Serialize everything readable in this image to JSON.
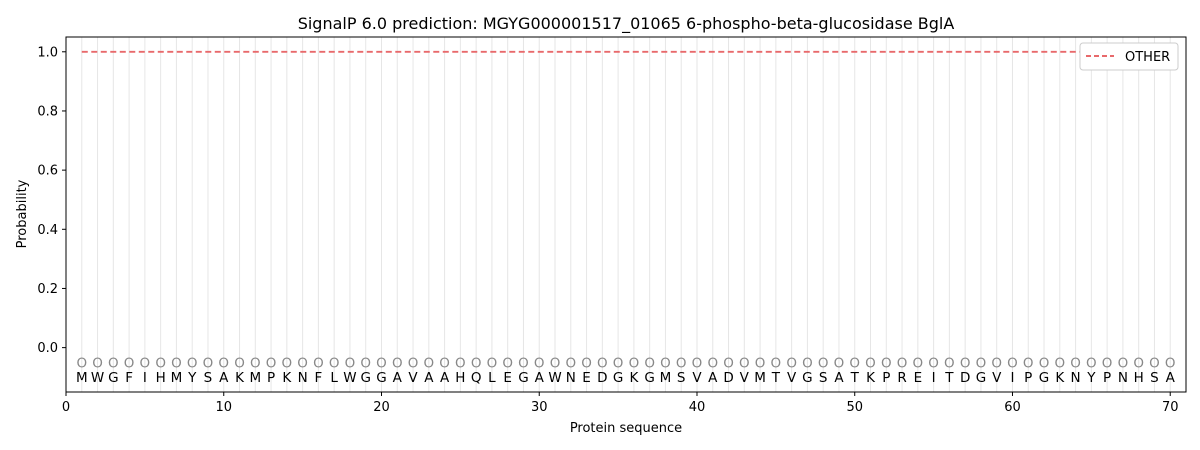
{
  "chart_data": {
    "type": "line",
    "title": "SignalP 6.0 prediction: MGYG000001517_01065 6-phospho-beta-glucosidase BglA",
    "xlabel": "Protein sequence",
    "ylabel": "Probability",
    "xlim": [
      0,
      71
    ],
    "ylim": [
      -0.15,
      1.05
    ],
    "x_ticks": [
      0,
      10,
      20,
      30,
      40,
      50,
      60,
      70
    ],
    "y_ticks": [
      0.0,
      0.2,
      0.4,
      0.6,
      0.8,
      1.0
    ],
    "x_tick_labels": [
      "0",
      "10",
      "20",
      "30",
      "40",
      "50",
      "60",
      "70"
    ],
    "y_tick_labels": [
      "0.0",
      "0.2",
      "0.4",
      "0.6",
      "0.8",
      "1.0"
    ],
    "sequence": "MWGFIHMYSAKMPKNFLWGGAVAAHQLEGAWNEDGKGMSVADVMTVGSATKPREITDGVIPGKNYPNHSA",
    "state_letter": "O",
    "series": [
      {
        "name": "OTHER",
        "color": "#e8696b",
        "style": "dashed",
        "x_start": 1,
        "x_end": 70,
        "value": 1.0
      }
    ],
    "legend": {
      "position": "top-right"
    },
    "grid": {
      "vertical_per_residue": true,
      "color": "#e6e6e6"
    }
  }
}
